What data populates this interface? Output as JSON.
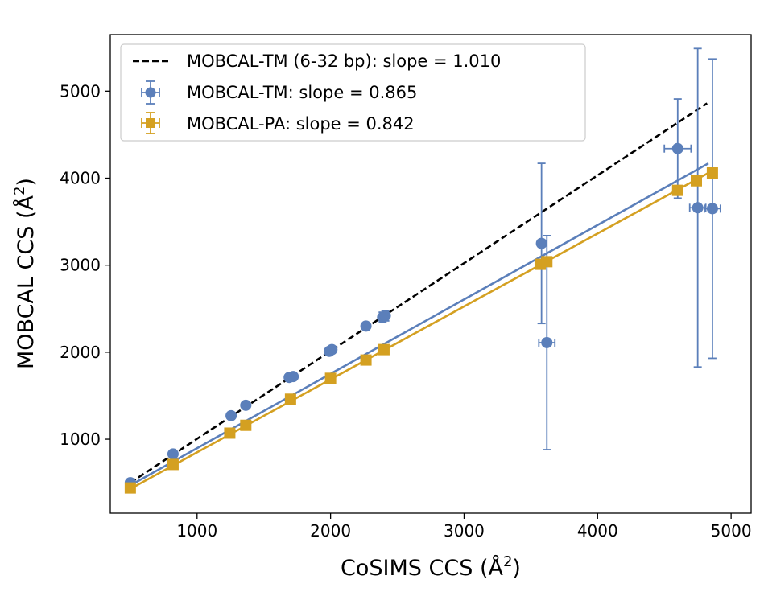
{
  "chart_data": {
    "type": "scatter",
    "xlabel": "CoSIMS CCS (Å",
    "ylabel": "MOBCAL CCS (Å",
    "axis_unit_superscript": "2",
    "xlim": [
      350,
      5150
    ],
    "ylim": [
      150,
      5650
    ],
    "xticks": [
      1000,
      2000,
      3000,
      4000,
      5000
    ],
    "xtick_labels": [
      "1000",
      "2000",
      "3000",
      "4000",
      "5000"
    ],
    "yticks": [
      1000,
      2000,
      3000,
      4000,
      5000
    ],
    "ytick_labels": [
      "1000",
      "2000",
      "3000",
      "4000",
      "5000"
    ],
    "grid": false,
    "legend_position": "top-left",
    "series": [
      {
        "name": "MOBCAL-TM (6-32 bp): slope = 1.010",
        "kind": "line",
        "style": "dashed",
        "color": "#000000",
        "x": [
          500,
          4820
        ],
        "y": [
          500,
          4860
        ]
      },
      {
        "name": "MOBCAL-TM: slope = 0.865",
        "kind": "errorbar",
        "marker": "circle",
        "color": "#5b7fba",
        "points": [
          {
            "x": 500,
            "y": 500,
            "xerr": 0,
            "yerr": 0
          },
          {
            "x": 820,
            "y": 830,
            "xerr": 0,
            "yerr": 0
          },
          {
            "x": 1255,
            "y": 1270,
            "xerr": 0,
            "yerr": 0
          },
          {
            "x": 1365,
            "y": 1390,
            "xerr": 0,
            "yerr": 0
          },
          {
            "x": 1690,
            "y": 1710,
            "xerr": 0,
            "yerr": 0
          },
          {
            "x": 1720,
            "y": 1720,
            "xerr": 0,
            "yerr": 0
          },
          {
            "x": 1990,
            "y": 2010,
            "xerr": 0,
            "yerr": 0
          },
          {
            "x": 2010,
            "y": 2030,
            "xerr": 0,
            "yerr": 0
          },
          {
            "x": 2265,
            "y": 2300,
            "xerr": 0,
            "yerr": 0
          },
          {
            "x": 2390,
            "y": 2400,
            "xerr": 0,
            "yerr": 60
          },
          {
            "x": 2410,
            "y": 2420,
            "xerr": 0,
            "yerr": 60
          },
          {
            "x": 3580,
            "y": 3250,
            "xerr": 25,
            "yerr": 920
          },
          {
            "x": 3620,
            "y": 2110,
            "xerr": 60,
            "yerr": 1230
          },
          {
            "x": 4600,
            "y": 4340,
            "xerr": 100,
            "yerr": 570
          },
          {
            "x": 4750,
            "y": 3660,
            "xerr": 60,
            "yerr": 1830
          },
          {
            "x": 4860,
            "y": 3650,
            "xerr": 60,
            "yerr": 1720
          }
        ],
        "fit": {
          "x": [
            500,
            4830
          ],
          "y": [
            470,
            4170
          ]
        }
      },
      {
        "name": "MOBCAL-PA: slope = 0.842",
        "kind": "errorbar",
        "marker": "square",
        "color": "#d4a021",
        "points": [
          {
            "x": 500,
            "y": 440,
            "xerr": 0,
            "yerr": 0
          },
          {
            "x": 820,
            "y": 710,
            "xerr": 0,
            "yerr": 0
          },
          {
            "x": 1245,
            "y": 1070,
            "xerr": 0,
            "yerr": 0
          },
          {
            "x": 1365,
            "y": 1160,
            "xerr": 0,
            "yerr": 0
          },
          {
            "x": 1700,
            "y": 1460,
            "xerr": 0,
            "yerr": 0
          },
          {
            "x": 2000,
            "y": 1700,
            "xerr": 0,
            "yerr": 0
          },
          {
            "x": 2265,
            "y": 1910,
            "xerr": 0,
            "yerr": 0
          },
          {
            "x": 2400,
            "y": 2030,
            "xerr": 0,
            "yerr": 0
          },
          {
            "x": 3570,
            "y": 3010,
            "xerr": 0,
            "yerr": 0
          },
          {
            "x": 3620,
            "y": 3040,
            "xerr": 0,
            "yerr": 0
          },
          {
            "x": 4600,
            "y": 3860,
            "xerr": 0,
            "yerr": 0
          },
          {
            "x": 4740,
            "y": 3970,
            "xerr": 0,
            "yerr": 0
          },
          {
            "x": 4860,
            "y": 4060,
            "xerr": 0,
            "yerr": 0
          }
        ],
        "fit": {
          "x": [
            500,
            4830
          ],
          "y": [
            430,
            4060
          ]
        }
      }
    ]
  }
}
